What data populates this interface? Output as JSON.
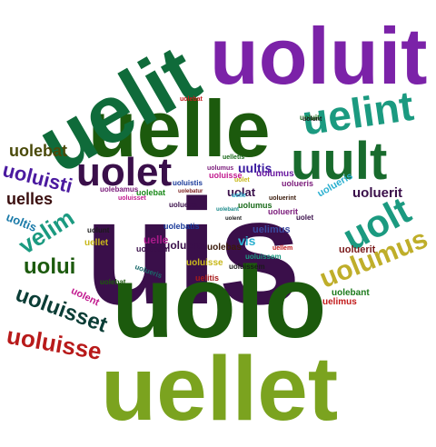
{
  "words": [
    {
      "text": "uis",
      "color": "#3a0f4a"
    },
    {
      "text": "uelle",
      "color": "#1c5a0d"
    },
    {
      "text": "uolo",
      "color": "#1c5a0d"
    },
    {
      "text": "uellet",
      "color": "#7ba31f"
    },
    {
      "text": "uelit",
      "color": "#0f6b3a"
    },
    {
      "text": "uoluit",
      "color": "#7b22a8"
    },
    {
      "text": "uelint",
      "color": "#1b9a80"
    },
    {
      "text": "uult",
      "color": "#186b2d"
    },
    {
      "text": "uolet",
      "color": "#3a0f4a"
    },
    {
      "text": "uolt",
      "color": "#1b9a80"
    },
    {
      "text": "uolumus",
      "color": "#bfae2a"
    },
    {
      "text": "uoluisse",
      "color": "#b81a1a"
    },
    {
      "text": "uoluisset",
      "color": "#0b3d36"
    },
    {
      "text": "uolui",
      "color": "#1c5a0d"
    },
    {
      "text": "velim",
      "color": "#1b9a80"
    },
    {
      "text": "uoluisti",
      "color": "#4b1aa0"
    },
    {
      "text": "uolebat",
      "color": "#4a4a0a"
    },
    {
      "text": "uelles",
      "color": "#3a0f0f"
    },
    {
      "text": "uoltis",
      "color": "#1a7aa8"
    },
    {
      "text": "uolent",
      "color": "#c21a8f"
    },
    {
      "text": "uolebat",
      "color": "#1c5a0d"
    },
    {
      "text": "uoluerit",
      "color": "#3a0f4a"
    },
    {
      "text": "uolueris",
      "color": "#2bb0d0"
    },
    {
      "text": "uolebant",
      "color": "#1c7a1c"
    },
    {
      "text": "uelimus",
      "color": "#c21a1a"
    },
    {
      "text": "uoluerit",
      "color": "#7a1a1a"
    },
    {
      "text": "uultis",
      "color": "#3a1aa0"
    },
    {
      "text": "uolumus",
      "color": "#6a1aa0"
    },
    {
      "text": "uolat",
      "color": "#3a0f4a"
    },
    {
      "text": "uolueris",
      "color": "#7a1a7a"
    },
    {
      "text": "uoluit",
      "color": "#1a6a1a"
    },
    {
      "text": "uoluisse",
      "color": "#c21a8f"
    },
    {
      "text": "uolebatis",
      "color": "#1a3a9a"
    },
    {
      "text": "uolebas",
      "color": "#3a1a0a"
    },
    {
      "text": "uolebam",
      "color": "#3a0f4a"
    },
    {
      "text": "uoluissem",
      "color": "#1b9a80"
    },
    {
      "text": "uelitis",
      "color": "#a81a1a"
    },
    {
      "text": "uoluero",
      "color": "#3a0f4a"
    },
    {
      "text": "uelle",
      "color": "#a81a8a"
    },
    {
      "text": "uellet",
      "color": "#c8b81a"
    },
    {
      "text": "uolunt",
      "color": "#1a1a1a"
    },
    {
      "text": "uolebat",
      "color": "#c21a1a"
    },
    {
      "text": "vis",
      "color": "#2bb0d0"
    },
    {
      "text": "uelimus",
      "color": "#3a4aa0"
    },
    {
      "text": "uolumus",
      "color": "#1a6a1a"
    },
    {
      "text": "uolunt",
      "color": "#1a1a1a"
    },
    {
      "text": "uoluerit",
      "color": "#7a1a7a"
    },
    {
      "text": "uolueris",
      "color": "#1a6a6a"
    },
    {
      "text": "uoluisse",
      "color": "#c8b81a"
    },
    {
      "text": "uoluissem",
      "color": "#1a1a1a"
    },
    {
      "text": "uoluisset",
      "color": "#c21a8f"
    },
    {
      "text": "uolebat",
      "color": "#1a8a1a"
    },
    {
      "text": "uoluistis",
      "color": "#1a3a9a"
    },
    {
      "text": "uoluerat",
      "color": "#3a0f4a"
    },
    {
      "text": "uolebamus",
      "color": "#7a1a7a"
    },
    {
      "text": "uellem",
      "color": "#c21a1a"
    },
    {
      "text": "uelletis",
      "color": "#1a6a1a"
    },
    {
      "text": "uoluerint",
      "color": "#3a1a0a"
    },
    {
      "text": "uolent",
      "color": "#1a1a1a"
    },
    {
      "text": "uolet",
      "color": "#c8b81a"
    },
    {
      "text": "uolebant",
      "color": "#1a8a8a"
    },
    {
      "text": "uolebatur",
      "color": "#7a1a1a"
    },
    {
      "text": "uolet",
      "color": "#3a0f4a"
    },
    {
      "text": "uolumus",
      "color": "#7a1a7a"
    },
    {
      "text": "uelle",
      "color": "#2bb0d0"
    }
  ]
}
